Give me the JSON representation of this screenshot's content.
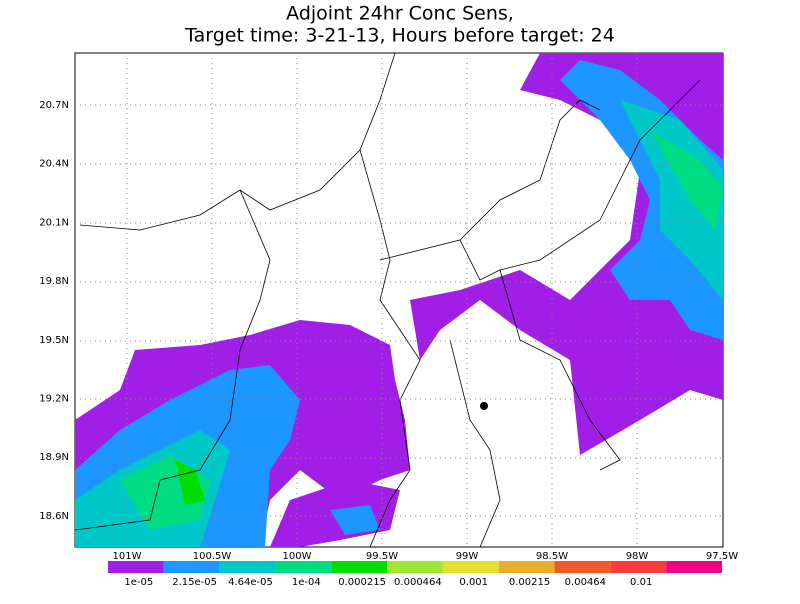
{
  "title": {
    "line1": "Adjoint 24hr Conc Sens,",
    "line2": "Target time: 3-21-13, Hours before target: 24"
  },
  "lat_labels": [
    "20.7N",
    "20.4N",
    "20.1N",
    "19.8N",
    "19.5N",
    "19.2N",
    "18.9N",
    "18.6N"
  ],
  "lon_labels": [
    "101W",
    "100.5W",
    "100W",
    "99.5W",
    "99W",
    "98.5W",
    "98W",
    "97.5W"
  ],
  "legend": {
    "labels": [
      "1e-05",
      "2.15e-05",
      "4.64e-05",
      "1e-04",
      "0.000215",
      "0.000464",
      "0.001",
      "0.00215",
      "0.00464",
      "0.01"
    ],
    "colors": [
      "#a01ee6",
      "#1e96ff",
      "#00c8c8",
      "#00dc82",
      "#00dc00",
      "#a0e632",
      "#e6dc32",
      "#e6af2d",
      "#f05a28",
      "#fa3c3c",
      "#f00082"
    ]
  }
}
